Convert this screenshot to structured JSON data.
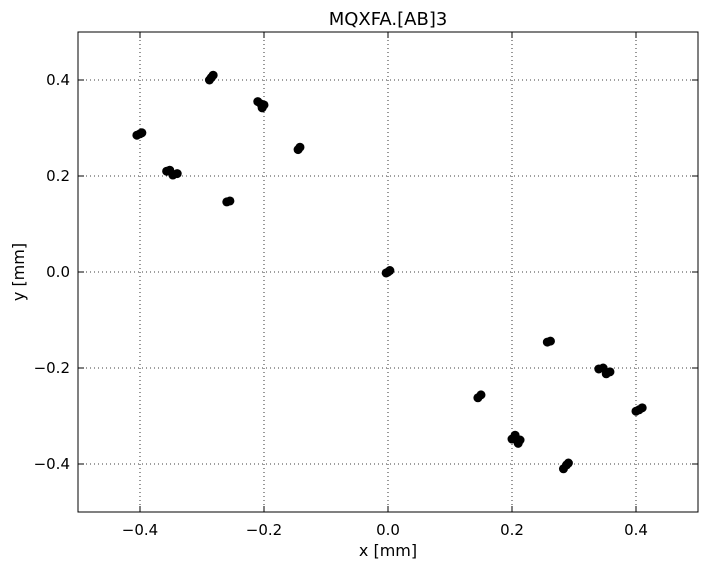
{
  "chart_data": {
    "type": "scatter",
    "title": "MQXFA.[AB]3",
    "xlabel": "x [mm]",
    "ylabel": "y [mm]",
    "xlim": [
      -0.5,
      0.5
    ],
    "ylim": [
      -0.5,
      0.5
    ],
    "grid": true,
    "marker_color": "#000000",
    "xticks": [
      -0.4,
      -0.2,
      0.0,
      0.2,
      0.4
    ],
    "yticks": [
      -0.4,
      -0.2,
      0.0,
      0.2,
      0.4
    ],
    "xtick_labels": [
      "−0.4",
      "−0.2",
      "0.0",
      "0.2",
      "0.4"
    ],
    "ytick_labels": [
      "−0.4",
      "−0.2",
      "0.0",
      "0.2",
      "0.4"
    ],
    "points": [
      {
        "x": -0.405,
        "y": 0.285
      },
      {
        "x": -0.4,
        "y": 0.288
      },
      {
        "x": -0.397,
        "y": 0.29
      },
      {
        "x": -0.288,
        "y": 0.4
      },
      {
        "x": -0.285,
        "y": 0.405
      },
      {
        "x": -0.282,
        "y": 0.41
      },
      {
        "x": -0.21,
        "y": 0.355
      },
      {
        "x": -0.205,
        "y": 0.35
      },
      {
        "x": -0.2,
        "y": 0.348
      },
      {
        "x": -0.203,
        "y": 0.342
      },
      {
        "x": -0.145,
        "y": 0.255
      },
      {
        "x": -0.142,
        "y": 0.26
      },
      {
        "x": -0.357,
        "y": 0.21
      },
      {
        "x": -0.352,
        "y": 0.212
      },
      {
        "x": -0.347,
        "y": 0.202
      },
      {
        "x": -0.34,
        "y": 0.205
      },
      {
        "x": -0.26,
        "y": 0.146
      },
      {
        "x": -0.255,
        "y": 0.148
      },
      {
        "x": -0.003,
        "y": -0.002
      },
      {
        "x": 0.0,
        "y": 0.0
      },
      {
        "x": 0.003,
        "y": 0.003
      },
      {
        "x": 0.257,
        "y": -0.146
      },
      {
        "x": 0.262,
        "y": -0.144
      },
      {
        "x": 0.34,
        "y": -0.202
      },
      {
        "x": 0.347,
        "y": -0.2
      },
      {
        "x": 0.352,
        "y": -0.212
      },
      {
        "x": 0.358,
        "y": -0.208
      },
      {
        "x": 0.145,
        "y": -0.262
      },
      {
        "x": 0.15,
        "y": -0.256
      },
      {
        "x": 0.4,
        "y": -0.29
      },
      {
        "x": 0.405,
        "y": -0.287
      },
      {
        "x": 0.41,
        "y": -0.283
      },
      {
        "x": 0.2,
        "y": -0.348
      },
      {
        "x": 0.205,
        "y": -0.34
      },
      {
        "x": 0.21,
        "y": -0.357
      },
      {
        "x": 0.213,
        "y": -0.35
      },
      {
        "x": 0.283,
        "y": -0.41
      },
      {
        "x": 0.288,
        "y": -0.402
      },
      {
        "x": 0.291,
        "y": -0.398
      }
    ]
  }
}
